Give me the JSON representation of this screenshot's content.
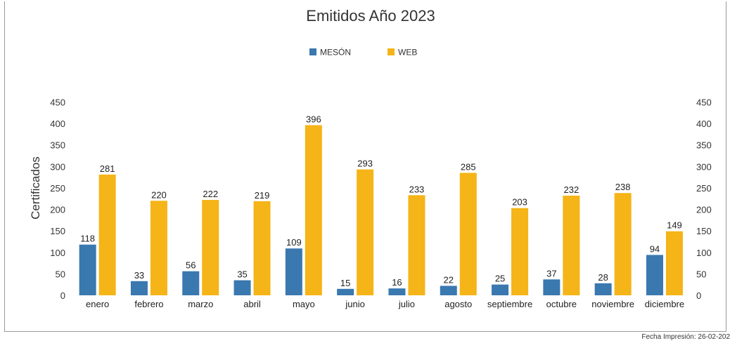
{
  "chart_data": {
    "type": "bar",
    "title": "Emitidos Año 2023",
    "ylabel": "Certificados",
    "xlabel": "",
    "ylim": [
      0,
      450
    ],
    "yticks": [
      0,
      50,
      100,
      150,
      200,
      250,
      300,
      350,
      400,
      450
    ],
    "secondary_axis": true,
    "legend_position": "top-center",
    "categories": [
      "enero",
      "febrero",
      "marzo",
      "abril",
      "mayo",
      "junio",
      "julio",
      "agosto",
      "septiembre",
      "octubre",
      "noviembre",
      "diciembre"
    ],
    "series": [
      {
        "name": "MESÓN",
        "color": "#3a78b0",
        "values": [
          118,
          33,
          56,
          35,
          109,
          15,
          16,
          22,
          25,
          37,
          28,
          94
        ]
      },
      {
        "name": "WEB",
        "color": "#f5b417",
        "values": [
          281,
          220,
          222,
          219,
          396,
          293,
          233,
          285,
          203,
          232,
          238,
          149
        ]
      }
    ]
  },
  "footer": {
    "print_date": "Fecha Impresión: 26-02-202"
  }
}
